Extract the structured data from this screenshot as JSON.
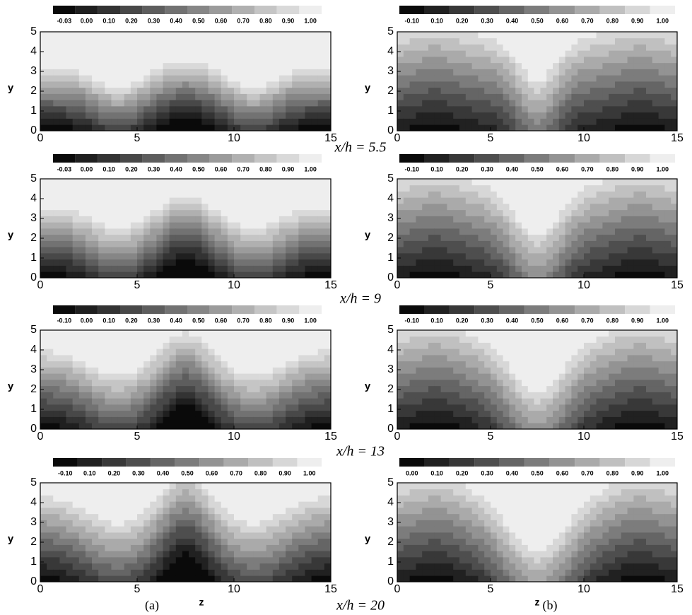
{
  "chart_data": [
    {
      "type": "contour",
      "xlim": [
        0,
        15
      ],
      "ylim": [
        0,
        5
      ],
      "xticks": [
        0,
        5,
        10,
        15
      ],
      "yticks": [
        0,
        1,
        2,
        3,
        4,
        5
      ],
      "ylabel": "y",
      "levels": [
        {
          "value": -0.03,
          "label": "-0.03"
        },
        {
          "value": 0,
          "label": "0.00"
        },
        {
          "value": 0.1,
          "label": "0.10"
        },
        {
          "value": 0.2,
          "label": "0.20"
        },
        {
          "value": 0.3,
          "label": "0.30"
        },
        {
          "value": 0.4,
          "label": "0.40"
        },
        {
          "value": 0.5,
          "label": "0.50"
        },
        {
          "value": 0.6,
          "label": "0.60"
        },
        {
          "value": 0.7,
          "label": "0.70"
        },
        {
          "value": 0.8,
          "label": "0.80"
        },
        {
          "value": 0.9,
          "label": "0.90"
        },
        {
          "value": 1,
          "label": "1.00"
        }
      ]
    },
    {
      "type": "contour",
      "xlim": [
        0,
        15
      ],
      "ylim": [
        0,
        5
      ],
      "xticks": [
        0,
        5,
        10,
        15
      ],
      "yticks": [
        0,
        1,
        2,
        3,
        4,
        5
      ],
      "ylabel": "y",
      "levels": [
        {
          "value": -0.1,
          "label": "-0.10"
        },
        {
          "value": 0.1,
          "label": "0.10"
        },
        {
          "value": 0.2,
          "label": "0.20"
        },
        {
          "value": 0.3,
          "label": "0.30"
        },
        {
          "value": 0.4,
          "label": "0.40"
        },
        {
          "value": 0.5,
          "label": "0.50"
        },
        {
          "value": 0.6,
          "label": "0.60"
        },
        {
          "value": 0.7,
          "label": "0.70"
        },
        {
          "value": 0.8,
          "label": "0.80"
        },
        {
          "value": 0.9,
          "label": "0.90"
        },
        {
          "value": 1,
          "label": "1.00"
        }
      ]
    },
    {
      "type": "contour",
      "xlim": [
        0,
        15
      ],
      "ylim": [
        0,
        5
      ],
      "xticks": [
        0,
        5,
        10,
        15
      ],
      "yticks": [
        0,
        1,
        2,
        3,
        4,
        5
      ],
      "ylabel": "y",
      "levels": [
        {
          "value": -0.03,
          "label": "-0.03"
        },
        {
          "value": 0,
          "label": "0.00"
        },
        {
          "value": 0.1,
          "label": "0.10"
        },
        {
          "value": 0.2,
          "label": "0.20"
        },
        {
          "value": 0.3,
          "label": "0.30"
        },
        {
          "value": 0.4,
          "label": "0.40"
        },
        {
          "value": 0.5,
          "label": "0.50"
        },
        {
          "value": 0.6,
          "label": "0.60"
        },
        {
          "value": 0.7,
          "label": "0.70"
        },
        {
          "value": 0.8,
          "label": "0.80"
        },
        {
          "value": 0.9,
          "label": "0.90"
        },
        {
          "value": 1,
          "label": "1.00"
        }
      ]
    },
    {
      "type": "contour",
      "xlim": [
        0,
        15
      ],
      "ylim": [
        0,
        5
      ],
      "xticks": [
        0,
        5,
        10,
        15
      ],
      "yticks": [
        0,
        1,
        2,
        3,
        4,
        5
      ],
      "ylabel": "y",
      "levels": [
        {
          "value": -0.1,
          "label": "-0.10"
        },
        {
          "value": 0.1,
          "label": "0.10"
        },
        {
          "value": 0.2,
          "label": "0.20"
        },
        {
          "value": 0.3,
          "label": "0.30"
        },
        {
          "value": 0.4,
          "label": "0.40"
        },
        {
          "value": 0.5,
          "label": "0.50"
        },
        {
          "value": 0.6,
          "label": "0.60"
        },
        {
          "value": 0.7,
          "label": "0.70"
        },
        {
          "value": 0.8,
          "label": "0.80"
        },
        {
          "value": 0.9,
          "label": "0.90"
        },
        {
          "value": 1,
          "label": "1.00"
        }
      ]
    },
    {
      "type": "contour",
      "xlim": [
        0,
        15
      ],
      "ylim": [
        0,
        5
      ],
      "xticks": [
        0,
        5,
        10,
        15
      ],
      "yticks": [
        0,
        1,
        2,
        3,
        4,
        5
      ],
      "ylabel": "y",
      "levels": [
        {
          "value": -0.1,
          "label": "-0.10"
        },
        {
          "value": 0,
          "label": "0.00"
        },
        {
          "value": 0.1,
          "label": "0.10"
        },
        {
          "value": 0.2,
          "label": "0.20"
        },
        {
          "value": 0.3,
          "label": "0.30"
        },
        {
          "value": 0.4,
          "label": "0.40"
        },
        {
          "value": 0.5,
          "label": "0.50"
        },
        {
          "value": 0.6,
          "label": "0.60"
        },
        {
          "value": 0.7,
          "label": "0.70"
        },
        {
          "value": 0.8,
          "label": "0.80"
        },
        {
          "value": 0.9,
          "label": "0.90"
        },
        {
          "value": 1,
          "label": "1.00"
        }
      ]
    },
    {
      "type": "contour",
      "xlim": [
        0,
        15
      ],
      "ylim": [
        0,
        5
      ],
      "xticks": [
        0,
        5,
        10,
        15
      ],
      "yticks": [
        0,
        1,
        2,
        3,
        4,
        5
      ],
      "ylabel": "y",
      "levels": [
        {
          "value": -0.1,
          "label": "-0.10"
        },
        {
          "value": 0.1,
          "label": "0.10"
        },
        {
          "value": 0.2,
          "label": "0.20"
        },
        {
          "value": 0.3,
          "label": "0.30"
        },
        {
          "value": 0.4,
          "label": "0.40"
        },
        {
          "value": 0.5,
          "label": "0.50"
        },
        {
          "value": 0.6,
          "label": "0.60"
        },
        {
          "value": 0.7,
          "label": "0.70"
        },
        {
          "value": 0.8,
          "label": "0.80"
        },
        {
          "value": 0.9,
          "label": "0.90"
        },
        {
          "value": 1,
          "label": "1.00"
        }
      ]
    },
    {
      "type": "contour",
      "xlim": [
        0,
        15
      ],
      "ylim": [
        0,
        5
      ],
      "xticks": [
        0,
        5,
        10,
        15
      ],
      "yticks": [
        0,
        1,
        2,
        3,
        4,
        5
      ],
      "ylabel": "y",
      "xlabel": "z",
      "levels": [
        {
          "value": -0.1,
          "label": "-0.10"
        },
        {
          "value": 0.1,
          "label": "0.10"
        },
        {
          "value": 0.2,
          "label": "0.20"
        },
        {
          "value": 0.3,
          "label": "0.30"
        },
        {
          "value": 0.4,
          "label": "0.40"
        },
        {
          "value": 0.5,
          "label": "0.50"
        },
        {
          "value": 0.6,
          "label": "0.60"
        },
        {
          "value": 0.7,
          "label": "0.70"
        },
        {
          "value": 0.8,
          "label": "0.80"
        },
        {
          "value": 0.9,
          "label": "0.90"
        },
        {
          "value": 1,
          "label": "1.00"
        }
      ]
    },
    {
      "type": "contour",
      "xlim": [
        0,
        15
      ],
      "ylim": [
        0,
        5
      ],
      "xticks": [
        0,
        5,
        10,
        15
      ],
      "yticks": [
        0,
        1,
        2,
        3,
        4,
        5
      ],
      "ylabel": "y",
      "xlabel": "z",
      "levels": [
        {
          "value": 0,
          "label": "0.00"
        },
        {
          "value": 0.1,
          "label": "0.10"
        },
        {
          "value": 0.2,
          "label": "0.20"
        },
        {
          "value": 0.3,
          "label": "0.30"
        },
        {
          "value": 0.4,
          "label": "0.40"
        },
        {
          "value": 0.5,
          "label": "0.50"
        },
        {
          "value": 0.6,
          "label": "0.60"
        },
        {
          "value": 0.7,
          "label": "0.70"
        },
        {
          "value": 0.8,
          "label": "0.80"
        },
        {
          "value": 0.9,
          "label": "0.90"
        },
        {
          "value": 1,
          "label": "1.00"
        }
      ]
    }
  ],
  "captions": [
    "x/h = 5.5",
    "x/h = 9",
    "x/h = 13",
    "x/h = 20"
  ],
  "panel_labels": [
    "(a)",
    "(b)"
  ]
}
